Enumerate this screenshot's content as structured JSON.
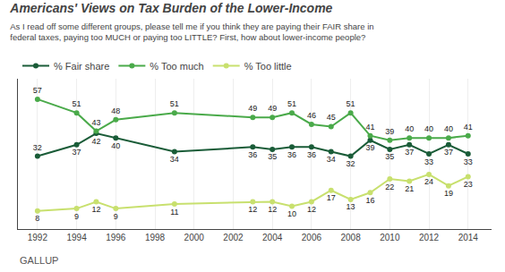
{
  "chart_data": {
    "type": "line",
    "title": "Americans' Views on Tax Burden of the Lower-Income",
    "subtitle": "As I read off some different groups, please tell me if you think they are paying their FAIR share in\nfederal taxes, paying too MUCH or paying too LITTLE? First, how about lower-income people?",
    "annotations": [
      "GALLUP"
    ],
    "x": [
      1992,
      1994,
      1995,
      1996,
      1999,
      2003,
      2004,
      2005,
      2006,
      2007,
      2008,
      2009,
      2010,
      2011,
      2012,
      2013,
      2014
    ],
    "series": [
      {
        "name": "% Fair share",
        "color": "#1a5c38",
        "values": [
          32,
          37,
          42,
          40,
          34,
          36,
          35,
          36,
          36,
          34,
          32,
          39,
          35,
          37,
          33,
          37,
          33
        ]
      },
      {
        "name": "% Too much",
        "color": "#4aaa4a",
        "values": [
          57,
          51,
          43,
          48,
          51,
          49,
          49,
          51,
          46,
          45,
          51,
          41,
          39,
          40,
          40,
          40,
          41
        ]
      },
      {
        "name": "% Too little",
        "color": "#c8e06e",
        "values": [
          8,
          9,
          12,
          9,
          11,
          12,
          12,
          10,
          12,
          17,
          13,
          16,
          22,
          21,
          24,
          19,
          23
        ]
      }
    ],
    "xlim": [
      1991,
      2015.2
    ],
    "xticks": [
      1992,
      1994,
      1996,
      1998,
      2000,
      2002,
      2004,
      2006,
      2008,
      2010,
      2012,
      2014
    ],
    "ylim": [
      0,
      66
    ],
    "yticks": [],
    "grid": "x",
    "tick_labels": "x",
    "data_labels": true,
    "marker": "circle",
    "legend": "top"
  }
}
